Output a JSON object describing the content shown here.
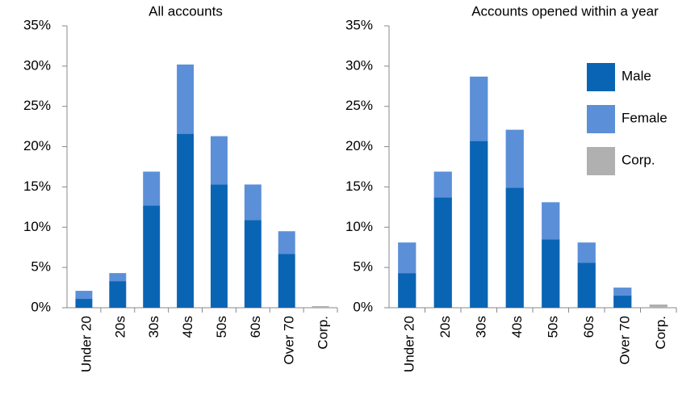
{
  "chart_data": [
    {
      "type": "stacked_bar",
      "title": "All accounts",
      "categories": [
        "Under 20",
        "20s",
        "30s",
        "40s",
        "50s",
        "60s",
        "Over 70",
        "Corp."
      ],
      "series": [
        {
          "name": "Male",
          "color": "#0a64b4",
          "values": [
            1.1,
            3.3,
            12.7,
            21.6,
            15.3,
            10.9,
            6.7,
            0
          ]
        },
        {
          "name": "Female",
          "color": "#5b8fd8",
          "values": [
            1.0,
            1.0,
            4.2,
            8.6,
            6.0,
            4.4,
            2.8,
            0
          ]
        },
        {
          "name": "Corp.",
          "color": "#b0b0b0",
          "values": [
            0,
            0,
            0,
            0,
            0,
            0,
            0,
            0.2
          ]
        }
      ],
      "ylim": [
        0,
        35
      ],
      "yticks": [
        {
          "value": 0,
          "label": "0%"
        },
        {
          "value": 5,
          "label": "5%"
        },
        {
          "value": 10,
          "label": "10%"
        },
        {
          "value": 15,
          "label": "15%"
        },
        {
          "value": 20,
          "label": "20%"
        },
        {
          "value": 25,
          "label": "25%"
        },
        {
          "value": 30,
          "label": "30%"
        },
        {
          "value": 35,
          "label": "35%"
        }
      ],
      "legend": false
    },
    {
      "type": "stacked_bar",
      "title": "Accounts opened within a year",
      "categories": [
        "Under 20",
        "20s",
        "30s",
        "40s",
        "50s",
        "60s",
        "Over 70",
        "Corp."
      ],
      "series": [
        {
          "name": "Male",
          "color": "#0a64b4",
          "values": [
            4.3,
            13.7,
            20.7,
            14.9,
            8.5,
            5.6,
            1.5,
            0
          ]
        },
        {
          "name": "Female",
          "color": "#5b8fd8",
          "values": [
            3.8,
            3.2,
            8.0,
            7.2,
            4.6,
            2.5,
            1.0,
            0
          ]
        },
        {
          "name": "Corp.",
          "color": "#b0b0b0",
          "values": [
            0,
            0,
            0,
            0,
            0,
            0,
            0,
            0.4
          ]
        }
      ],
      "ylim": [
        0,
        35
      ],
      "yticks": [
        {
          "value": 0,
          "label": "0%"
        },
        {
          "value": 5,
          "label": "5%"
        },
        {
          "value": 10,
          "label": "10%"
        },
        {
          "value": 15,
          "label": "15%"
        },
        {
          "value": 20,
          "label": "20%"
        },
        {
          "value": 25,
          "label": "25%"
        },
        {
          "value": 30,
          "label": "30%"
        },
        {
          "value": 35,
          "label": "35%"
        }
      ],
      "legend": "upper right"
    }
  ]
}
